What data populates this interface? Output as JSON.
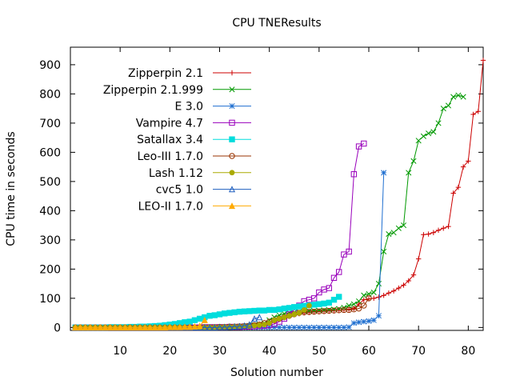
{
  "chart_data": {
    "type": "line",
    "title": "CPU TNEResults",
    "xlabel": "Solution number",
    "ylabel": "CPU time in seconds",
    "xlim": [
      0,
      83
    ],
    "ylim": [
      -10,
      960
    ],
    "xticks": [
      10,
      20,
      30,
      40,
      50,
      60,
      70,
      80
    ],
    "yticks": [
      0,
      100,
      200,
      300,
      400,
      500,
      600,
      700,
      800,
      900
    ],
    "legend_position": "top-left",
    "grid": false,
    "series": [
      {
        "name": "Zipperpin 2.1",
        "color": "#cc0000",
        "marker": "plus",
        "x": [
          1,
          2,
          3,
          4,
          5,
          6,
          7,
          8,
          9,
          10,
          11,
          12,
          13,
          14,
          15,
          16,
          17,
          18,
          19,
          20,
          21,
          22,
          23,
          24,
          25,
          26,
          27,
          28,
          29,
          30,
          31,
          32,
          33,
          34,
          35,
          36,
          37,
          38,
          39,
          40,
          41,
          42,
          43,
          44,
          45,
          46,
          47,
          48,
          49,
          50,
          51,
          52,
          53,
          54,
          55,
          56,
          57,
          58,
          59,
          60,
          61,
          62,
          63,
          64,
          65,
          66,
          67,
          68,
          69,
          70,
          71,
          72,
          73,
          74,
          75,
          76,
          77,
          78,
          79,
          80,
          81,
          82
        ],
        "y": [
          0,
          0,
          0,
          0,
          0,
          0,
          0,
          0,
          0,
          0,
          0,
          0,
          0,
          0,
          0,
          0,
          0,
          0,
          0,
          0,
          0,
          0,
          0,
          0,
          0,
          0,
          1,
          1,
          1,
          2,
          2,
          2,
          3,
          3,
          4,
          4,
          5,
          6,
          8,
          12,
          20,
          28,
          35,
          40,
          44,
          47,
          50,
          52,
          54,
          55,
          56,
          57,
          58,
          59,
          60,
          62,
          65,
          80,
          95,
          98,
          100,
          104,
          110,
          118,
          125,
          135,
          145,
          160,
          180,
          235,
          318,
          320,
          325,
          333,
          340,
          346,
          460,
          480,
          550,
          570,
          730,
          740
        ],
        "y_tail_note": "",
        "last": 915
      },
      {
        "name": "Zipperpin 2.1.999",
        "color": "#009900",
        "marker": "cross",
        "x": [
          1,
          2,
          3,
          4,
          5,
          6,
          7,
          8,
          9,
          10,
          11,
          12,
          13,
          14,
          15,
          16,
          17,
          18,
          19,
          20,
          21,
          22,
          23,
          24,
          25,
          26,
          27,
          28,
          29,
          30,
          31,
          32,
          33,
          34,
          35,
          36,
          37,
          38,
          39,
          40,
          41,
          42,
          43,
          44,
          45,
          46,
          47,
          48,
          49,
          50,
          51,
          52,
          53,
          54,
          55,
          56,
          57,
          58,
          59,
          60,
          61,
          62,
          63,
          64,
          65,
          66,
          67,
          68,
          69,
          70,
          71,
          72,
          73,
          74,
          75,
          76,
          77,
          78,
          79
        ],
        "y": [
          0,
          0,
          0,
          0,
          0,
          0,
          0,
          0,
          0,
          0,
          0,
          0,
          0,
          0,
          0,
          0,
          0,
          0,
          0,
          0,
          0,
          0,
          0,
          0,
          0,
          0,
          1,
          1,
          1,
          2,
          2,
          3,
          3,
          4,
          5,
          6,
          8,
          10,
          15,
          25,
          35,
          42,
          47,
          50,
          52,
          54,
          55,
          56,
          57,
          58,
          59,
          60,
          62,
          64,
          68,
          75,
          80,
          90,
          110,
          115,
          120,
          150,
          260,
          320,
          325,
          340,
          350,
          530,
          570,
          640,
          655,
          665,
          670,
          700,
          750,
          760,
          790,
          795,
          790
        ]
      },
      {
        "name": "E 3.0",
        "color": "#1f6fd0",
        "marker": "star",
        "x": [
          1,
          2,
          3,
          4,
          5,
          6,
          7,
          8,
          9,
          10,
          11,
          12,
          13,
          14,
          15,
          16,
          17,
          18,
          19,
          20,
          21,
          22,
          23,
          24,
          25,
          26,
          27,
          28,
          29,
          30,
          31,
          32,
          33,
          34,
          35,
          36,
          37,
          38,
          39,
          40,
          41,
          42,
          43,
          44,
          45,
          46,
          47,
          48,
          49,
          50,
          51,
          52,
          53,
          54,
          55,
          56,
          57,
          58,
          59,
          60,
          61,
          62,
          63
        ],
        "y": [
          0,
          0,
          0,
          0,
          0,
          0,
          0,
          0,
          0,
          0,
          0,
          0,
          0,
          0,
          0,
          0,
          0,
          0,
          0,
          0,
          0,
          0,
          0,
          0,
          0,
          0,
          0,
          0,
          0,
          0,
          0,
          0,
          0,
          0,
          0,
          0,
          0,
          0,
          0,
          0,
          0,
          0,
          0,
          0,
          0,
          0,
          0,
          0,
          0,
          0,
          0,
          0,
          0,
          0,
          0,
          1,
          15,
          18,
          20,
          22,
          25,
          40,
          530
        ]
      },
      {
        "name": "Vampire 4.7",
        "color": "#9900bb",
        "marker": "square",
        "x": [
          1,
          2,
          3,
          4,
          5,
          6,
          7,
          8,
          9,
          10,
          11,
          12,
          13,
          14,
          15,
          16,
          17,
          18,
          19,
          20,
          21,
          22,
          23,
          24,
          25,
          26,
          27,
          28,
          29,
          30,
          31,
          32,
          33,
          34,
          35,
          36,
          37,
          38,
          39,
          40,
          41,
          42,
          43,
          44,
          45,
          46,
          47,
          48,
          49,
          50,
          51,
          52,
          53,
          54,
          55,
          56,
          57,
          58,
          59
        ],
        "y": [
          0,
          0,
          0,
          0,
          0,
          0,
          0,
          0,
          0,
          0,
          0,
          0,
          0,
          0,
          0,
          0,
          0,
          0,
          0,
          0,
          0,
          0,
          0,
          0,
          0,
          0,
          1,
          1,
          1,
          1,
          1,
          2,
          2,
          2,
          3,
          3,
          4,
          5,
          6,
          8,
          12,
          20,
          30,
          45,
          60,
          75,
          90,
          95,
          100,
          120,
          130,
          135,
          170,
          190,
          250,
          260,
          525,
          620,
          630
        ]
      },
      {
        "name": "Satallax 3.4",
        "color": "#00dddd",
        "marker": "filled-square",
        "x": [
          1,
          2,
          3,
          4,
          5,
          6,
          7,
          8,
          9,
          10,
          11,
          12,
          13,
          14,
          15,
          16,
          17,
          18,
          19,
          20,
          21,
          22,
          23,
          24,
          25,
          26,
          27,
          28,
          29,
          30,
          31,
          32,
          33,
          34,
          35,
          36,
          37,
          38,
          39,
          40,
          41,
          42,
          43,
          44,
          45,
          46,
          47,
          48,
          49,
          50,
          51,
          52,
          53,
          54
        ],
        "y": [
          0,
          0,
          0,
          0,
          0,
          0,
          0,
          1,
          1,
          1,
          1,
          2,
          2,
          3,
          3,
          4,
          5,
          6,
          8,
          10,
          12,
          15,
          18,
          20,
          25,
          30,
          35,
          40,
          42,
          45,
          48,
          50,
          52,
          54,
          55,
          56,
          57,
          58,
          58,
          60,
          60,
          62,
          65,
          67,
          70,
          72,
          74,
          76,
          78,
          80,
          82,
          85,
          95,
          105
        ]
      },
      {
        "name": "Leo-III 1.7.0",
        "color": "#993300",
        "marker": "circle-plus",
        "x": [
          1,
          2,
          3,
          4,
          5,
          6,
          7,
          8,
          9,
          10,
          11,
          12,
          13,
          14,
          15,
          16,
          17,
          18,
          19,
          20,
          21,
          22,
          23,
          24,
          25,
          26,
          27,
          28,
          29,
          30,
          31,
          32,
          33,
          34,
          35,
          36,
          37,
          38,
          39,
          40,
          41,
          42,
          43,
          44,
          45,
          46,
          47,
          48,
          49,
          50,
          51,
          52,
          53,
          54,
          55,
          56,
          57,
          58,
          59,
          60
        ],
        "y": [
          0,
          0,
          0,
          0,
          0,
          0,
          0,
          0,
          0,
          0,
          0,
          0,
          0,
          0,
          0,
          0,
          0,
          0,
          0,
          0,
          0,
          0,
          0,
          0,
          0,
          0,
          1,
          1,
          1,
          2,
          2,
          3,
          3,
          4,
          5,
          6,
          8,
          10,
          15,
          20,
          25,
          30,
          35,
          40,
          45,
          50,
          52,
          53,
          54,
          55,
          56,
          57,
          58,
          59,
          60,
          60,
          62,
          65,
          75,
          100
        ]
      },
      {
        "name": "Lash 1.12",
        "color": "#aaaa00",
        "marker": "filled-star",
        "x": [
          1,
          2,
          3,
          4,
          5,
          6,
          7,
          8,
          9,
          10,
          11,
          12,
          13,
          14,
          15,
          16,
          17,
          18,
          19,
          20,
          21,
          22,
          23,
          24,
          25,
          26,
          27,
          28,
          29,
          30,
          31,
          32,
          33,
          34,
          35,
          36,
          37,
          38,
          39,
          40,
          41,
          42,
          43,
          44,
          45,
          46,
          47,
          48
        ],
        "y": [
          0,
          0,
          0,
          0,
          0,
          0,
          0,
          0,
          0,
          0,
          0,
          0,
          0,
          0,
          0,
          0,
          0,
          0,
          0,
          0,
          0,
          0,
          0,
          0,
          0,
          0,
          1,
          1,
          1,
          1,
          2,
          2,
          3,
          3,
          4,
          5,
          6,
          8,
          10,
          15,
          25,
          30,
          35,
          40,
          45,
          50,
          60,
          75
        ]
      },
      {
        "name": "cvc5 1.0",
        "color": "#1f5fbf",
        "marker": "triangle",
        "x": [
          1,
          2,
          3,
          4,
          5,
          6,
          7,
          8,
          9,
          10,
          11,
          12,
          13,
          14,
          15,
          16,
          17,
          18,
          19,
          20,
          21,
          22,
          23,
          24,
          25,
          26,
          27,
          28,
          29,
          30,
          31,
          32,
          33,
          34,
          35,
          36,
          37,
          38
        ],
        "y": [
          0,
          0,
          0,
          0,
          0,
          0,
          0,
          0,
          0,
          0,
          0,
          0,
          0,
          0,
          0,
          0,
          0,
          0,
          0,
          0,
          0,
          0,
          0,
          0,
          0,
          0,
          0,
          0,
          0,
          1,
          1,
          2,
          3,
          4,
          6,
          10,
          30,
          35
        ]
      },
      {
        "name": "LEO-II 1.7.0",
        "color": "#ffaa00",
        "marker": "filled-triangle",
        "x": [
          1,
          2,
          3,
          4,
          5,
          6,
          7,
          8,
          9,
          10,
          11,
          12,
          13,
          14,
          15,
          16,
          17,
          18,
          19,
          20,
          21,
          22,
          23,
          24,
          25,
          26,
          27
        ],
        "y": [
          0,
          0,
          0,
          0,
          0,
          0,
          0,
          0,
          0,
          0,
          0,
          0,
          0,
          0,
          0,
          0,
          0,
          0,
          0,
          1,
          1,
          1,
          2,
          2,
          3,
          5,
          25
        ]
      }
    ]
  }
}
